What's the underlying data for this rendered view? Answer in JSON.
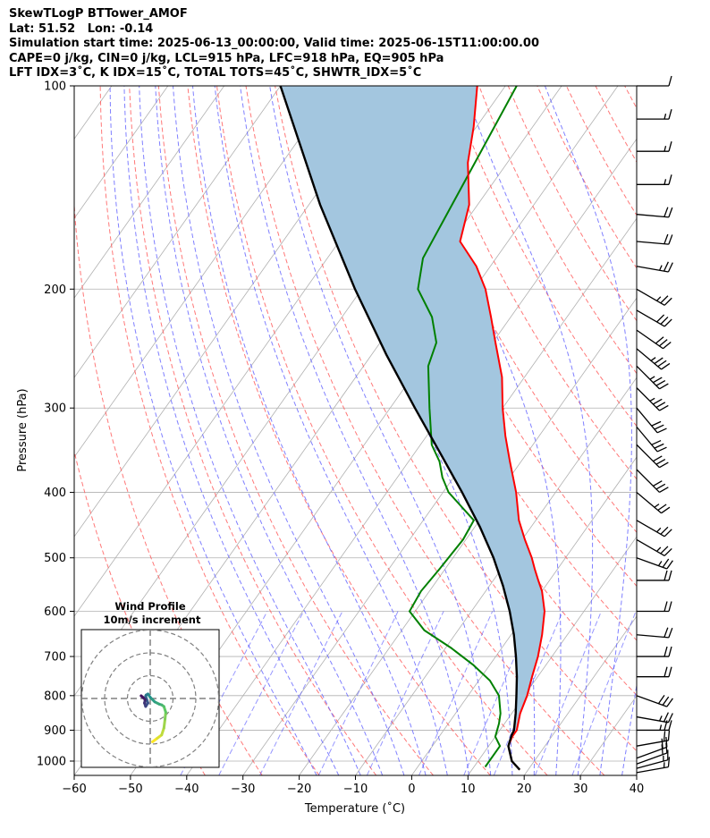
{
  "header": {
    "line1": "SkewTLogP BTTower_AMOF",
    "line2": "Lat: 51.52   Lon: -0.14",
    "line3": "Simulation start time: 2025-06-13_00:00:00, Valid time: 2025-06-15T11:00:00.00",
    "line4": "CAPE=0 j/kg, CIN=0 j/kg, LCL=915 hPa, LFC=918 hPa, EQ=905 hPa",
    "line5": "LFT IDX=3˚C, K IDX=15˚C, TOTAL TOTS=45˚C, SHWTR_IDX=5˚C"
  },
  "colors": {
    "temperature": "#ff0000",
    "dewpoint": "#008000",
    "parcel": "#000000",
    "cape_fill": "#a3c6df",
    "dry_adiabat": "#ff6060",
    "moist_adiabat": "#6a6aff",
    "mixing_ratio": "#4040ff",
    "isotherm": "#b0b0b0",
    "isobar": "#b0b0b0"
  },
  "chart_data": {
    "type": "skewt",
    "xlabel": "Temperature ($^\\circ$C)",
    "xlabel_display": "Temperature (˚C)",
    "ylabel": "Pressure (hPa)",
    "xlim": [
      -60,
      40
    ],
    "ylim": [
      1050,
      100
    ],
    "yscale": "log",
    "grid": true,
    "x_ticks": [
      "−60",
      "−50",
      "−40",
      "−30",
      "−20",
      "−10",
      "0",
      "10",
      "20",
      "30",
      "40"
    ],
    "x_tick_values": [
      -60,
      -50,
      -40,
      -30,
      -20,
      -10,
      0,
      10,
      20,
      30,
      40
    ],
    "y_ticks": [
      "1000",
      "900",
      "800",
      "700",
      "600",
      "500",
      "400",
      "300",
      "200",
      "100"
    ],
    "y_tick_values": [
      1000,
      900,
      800,
      700,
      600,
      500,
      400,
      300,
      200,
      100
    ],
    "series": [
      {
        "name": "",
        "role": "temperature",
        "pressure": [
          1030,
          1000,
          950,
          920,
          900,
          850,
          800,
          750,
          700,
          650,
          600,
          560,
          540,
          520,
          500,
          470,
          440,
          400,
          360,
          330,
          300,
          270,
          240,
          220,
          200,
          185,
          170,
          150,
          130,
          115,
          100
        ],
        "temperature": [
          18.5,
          16,
          13.5,
          13,
          13,
          11.5,
          10.5,
          9,
          7.5,
          5.5,
          3,
          0,
          -2,
          -4,
          -6,
          -9.5,
          -13,
          -17,
          -22,
          -26,
          -30,
          -34,
          -39.5,
          -43.5,
          -48,
          -52.5,
          -58.5,
          -61.5,
          -67,
          -70.5,
          -75
        ]
      },
      {
        "name": "",
        "role": "dewpoint",
        "pressure": [
          1020,
          950,
          920,
          880,
          850,
          800,
          760,
          720,
          680,
          640,
          600,
          560,
          520,
          470,
          440,
          400,
          380,
          360,
          340,
          300,
          260,
          240,
          220,
          200,
          180,
          160,
          100
        ],
        "dewpoint": [
          12,
          12,
          10,
          9,
          8,
          5.5,
          2,
          -3,
          -9,
          -16,
          -21,
          -21.5,
          -21,
          -20.5,
          -21,
          -29,
          -32,
          -34.5,
          -38,
          -43,
          -48.5,
          -50,
          -54,
          -60,
          -63,
          -64,
          -68
        ]
      },
      {
        "name": "",
        "role": "parcel",
        "pressure": [
          1030,
          1000,
          950,
          915,
          900,
          850,
          800,
          750,
          700,
          650,
          600,
          550,
          500,
          450,
          400,
          350,
          300,
          250,
          200,
          150,
          100
        ],
        "temperature": [
          18.5,
          16,
          13.5,
          12.7,
          12.5,
          10.7,
          8.6,
          6.3,
          3.6,
          0.5,
          -3.2,
          -7.6,
          -12.8,
          -19.1,
          -26.6,
          -35.4,
          -45.6,
          -57.4,
          -71.2,
          -88,
          -110
        ]
      }
    ],
    "annotations": [
      "CAPE shaded region between parcel and temperature"
    ],
    "inset": {
      "title": "Wind Profile",
      "subtitle": "10m/s increment",
      "rings": [
        10,
        20,
        30
      ],
      "hodograph": {
        "u": [
          1,
          3,
          5,
          6,
          6.5,
          6.8,
          6,
          5,
          4,
          2,
          0,
          -1,
          -1.8,
          -2,
          -1.5,
          -1,
          -2,
          -2.5,
          -2.2,
          -3.2,
          -4
        ],
        "v": [
          -19,
          -17.5,
          -16,
          -13,
          -9,
          -6,
          -3.5,
          -2.8,
          -2.5,
          -1.5,
          0.5,
          2,
          1.5,
          1,
          -0.5,
          -2,
          -3.5,
          -2,
          -0.5,
          0.5,
          1.2
        ]
      }
    },
    "wind_barbs": {
      "pressure": [
        1040,
        1025,
        1010,
        990,
        950,
        900,
        860,
        800,
        750,
        700,
        650,
        600,
        540,
        500,
        470,
        440,
        400,
        370,
        340,
        320,
        300,
        280,
        260,
        245,
        230,
        215,
        200,
        185,
        170,
        155,
        140,
        125,
        112,
        100
      ],
      "speed_kt": [
        15,
        15,
        20,
        20,
        20,
        25,
        25,
        30,
        20,
        20,
        20,
        20,
        20,
        25,
        25,
        25,
        25,
        30,
        30,
        30,
        30,
        35,
        35,
        35,
        30,
        30,
        25,
        25,
        20,
        20,
        15,
        15,
        15,
        10
      ],
      "direction_deg": [
        260,
        255,
        250,
        250,
        260,
        270,
        280,
        290,
        270,
        270,
        275,
        270,
        270,
        290,
        300,
        300,
        310,
        315,
        315,
        320,
        320,
        315,
        315,
        310,
        305,
        300,
        300,
        280,
        275,
        275,
        270,
        270,
        270,
        270
      ]
    }
  }
}
